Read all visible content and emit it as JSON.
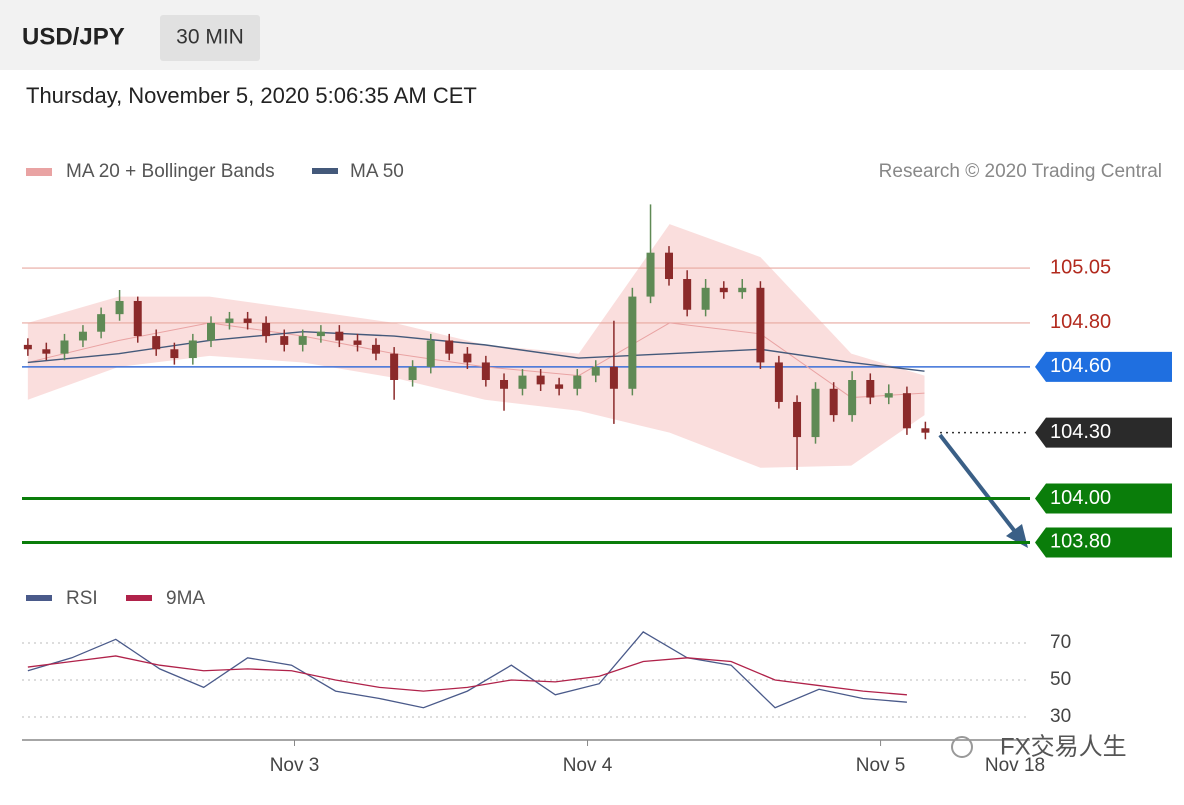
{
  "header": {
    "symbol": "USD/JPY",
    "interval": "30 MIN",
    "timestamp": "Thursday, November 5, 2020 5:06:35 AM CET"
  },
  "chart_data": [
    {
      "type": "candlestick",
      "credit": "Research © 2020 Trading Central",
      "watermark": "FX交易人生",
      "up_color": "#5f8a55",
      "down_color": "#8b2a2a",
      "xlim": [
        2.07,
        5.51
      ],
      "xticks": [
        {
          "value": 3,
          "label": "Nov 3"
        },
        {
          "value": 4,
          "label": "Nov 4"
        },
        {
          "value": 5,
          "label": "Nov 5"
        }
      ],
      "x_end_label": "Nov 18",
      "ylim": [
        103.72,
        105.36
      ],
      "x": [
        2.09,
        2.153,
        2.215,
        2.278,
        2.34,
        2.403,
        2.465,
        2.528,
        2.59,
        2.653,
        2.715,
        2.778,
        2.84,
        2.903,
        2.965,
        3.028,
        3.09,
        3.153,
        3.215,
        3.278,
        3.34,
        3.403,
        3.465,
        3.528,
        3.59,
        3.653,
        3.715,
        3.778,
        3.84,
        3.903,
        3.965,
        4.028,
        4.09,
        4.153,
        4.215,
        4.278,
        4.34,
        4.403,
        4.465,
        4.528,
        4.59,
        4.653,
        4.715,
        4.778,
        4.84,
        4.903,
        4.965,
        5.028,
        5.09,
        5.153
      ],
      "open": [
        104.7,
        104.68,
        104.66,
        104.72,
        104.76,
        104.84,
        104.9,
        104.74,
        104.68,
        104.64,
        104.72,
        104.8,
        104.82,
        104.8,
        104.74,
        104.7,
        104.74,
        104.76,
        104.72,
        104.7,
        104.66,
        104.54,
        104.6,
        104.72,
        104.66,
        104.62,
        104.54,
        104.5,
        104.56,
        104.52,
        104.5,
        104.56,
        104.6,
        104.5,
        104.92,
        105.12,
        105.0,
        104.86,
        104.96,
        104.94,
        104.96,
        104.62,
        104.44,
        104.28,
        104.5,
        104.38,
        104.54,
        104.46,
        104.48,
        104.32
      ],
      "high": [
        104.73,
        104.71,
        104.75,
        104.79,
        104.87,
        104.95,
        104.92,
        104.77,
        104.71,
        104.75,
        104.83,
        104.85,
        104.85,
        104.83,
        104.77,
        104.77,
        104.79,
        104.79,
        104.75,
        104.73,
        104.69,
        104.63,
        104.75,
        104.75,
        104.69,
        104.65,
        104.57,
        104.59,
        104.59,
        104.55,
        104.59,
        104.63,
        104.81,
        104.96,
        105.34,
        105.15,
        105.04,
        105.0,
        104.99,
        105.0,
        104.99,
        104.65,
        104.47,
        104.53,
        104.53,
        104.58,
        104.57,
        104.52,
        104.51,
        104.35
      ],
      "low": [
        104.65,
        104.63,
        104.63,
        104.69,
        104.73,
        104.81,
        104.71,
        104.65,
        104.61,
        104.61,
        104.69,
        104.77,
        104.77,
        104.71,
        104.67,
        104.67,
        104.71,
        104.69,
        104.67,
        104.63,
        104.45,
        104.51,
        104.57,
        104.63,
        104.59,
        104.51,
        104.4,
        104.47,
        104.49,
        104.47,
        104.47,
        104.53,
        104.34,
        104.47,
        104.89,
        104.97,
        104.83,
        104.83,
        104.91,
        104.91,
        104.59,
        104.41,
        104.13,
        104.25,
        104.35,
        104.35,
        104.43,
        104.43,
        104.29,
        104.27
      ],
      "close": [
        104.68,
        104.66,
        104.72,
        104.76,
        104.84,
        104.9,
        104.74,
        104.68,
        104.64,
        104.72,
        104.8,
        104.82,
        104.8,
        104.74,
        104.7,
        104.74,
        104.76,
        104.72,
        104.7,
        104.66,
        104.54,
        104.6,
        104.72,
        104.66,
        104.62,
        104.54,
        104.5,
        104.56,
        104.52,
        104.5,
        104.56,
        104.6,
        104.5,
        104.92,
        105.12,
        105.0,
        104.86,
        104.96,
        104.94,
        104.96,
        104.62,
        104.44,
        104.28,
        104.5,
        104.38,
        104.54,
        104.46,
        104.48,
        104.32,
        104.3
      ],
      "series": [
        {
          "name": "MA 20 + Bollinger Bands",
          "color": "#e9a3a3",
          "band_color": "#f9d6d4",
          "x": [
            2.09,
            2.4,
            2.71,
            3.03,
            3.34,
            3.65,
            3.97,
            4.28,
            4.59,
            4.9,
            5.15
          ],
          "values": [
            104.62,
            104.72,
            104.8,
            104.74,
            104.66,
            104.6,
            104.56,
            104.8,
            104.75,
            104.46,
            104.48
          ],
          "upper": [
            104.8,
            104.92,
            104.92,
            104.86,
            104.8,
            104.7,
            104.66,
            105.25,
            105.1,
            104.66,
            104.56
          ],
          "lower": [
            104.45,
            104.6,
            104.65,
            104.62,
            104.55,
            104.45,
            104.4,
            104.3,
            104.14,
            104.15,
            104.38
          ]
        },
        {
          "name": "MA 50",
          "color": "#44597a",
          "x": [
            2.09,
            2.4,
            2.71,
            3.03,
            3.34,
            3.65,
            3.97,
            4.28,
            4.59,
            4.9,
            5.15
          ],
          "values": [
            104.62,
            104.66,
            104.72,
            104.76,
            104.74,
            104.7,
            104.64,
            104.66,
            104.68,
            104.62,
            104.58
          ]
        }
      ],
      "levels": [
        {
          "value": 105.05,
          "label": "105.05",
          "line_color": "#e8a9a0",
          "text_color": "#b22a1e",
          "line_width": 1.2
        },
        {
          "value": 104.8,
          "label": "104.80",
          "line_color": "#e8a9a0",
          "text_color": "#b22a1e",
          "line_width": 1.2
        },
        {
          "value": 104.6,
          "label": "104.60",
          "line_color": "#3a6fd8",
          "text_color": "#ffffff",
          "box_color": "#1f6fe0",
          "line_width": 1.5
        },
        {
          "value": 104.3,
          "label": "104.30",
          "line_color": "#333333",
          "text_color": "#ffffff",
          "box_color": "#2a2a2a",
          "line_width": 1.2,
          "dotted": true
        },
        {
          "value": 104.0,
          "label": "104.00",
          "line_color": "#0a7d0a",
          "text_color": "#ffffff",
          "box_color": "#0a7d0a",
          "line_width": 3
        },
        {
          "value": 103.8,
          "label": "103.80",
          "line_color": "#0a7d0a",
          "text_color": "#ffffff",
          "box_color": "#0a7d0a",
          "line_width": 3
        }
      ]
    },
    {
      "type": "line",
      "ylim": [
        20,
        80
      ],
      "yticks": [
        70,
        50,
        30
      ],
      "x": [
        2.09,
        2.24,
        2.39,
        2.54,
        2.69,
        2.84,
        2.99,
        3.14,
        3.29,
        3.44,
        3.59,
        3.74,
        3.89,
        4.04,
        4.19,
        4.34,
        4.49,
        4.64,
        4.79,
        4.94,
        5.09
      ],
      "series": [
        {
          "name": "RSI",
          "color": "#4a5a8a",
          "values": [
            55,
            62,
            72,
            56,
            46,
            62,
            58,
            44,
            40,
            35,
            44,
            58,
            42,
            48,
            76,
            62,
            58,
            35,
            45,
            40,
            38
          ]
        },
        {
          "name": "9MA",
          "color": "#b0224a",
          "values": [
            57,
            60,
            63,
            58,
            55,
            56,
            55,
            50,
            46,
            44,
            46,
            50,
            49,
            52,
            60,
            62,
            60,
            50,
            47,
            44,
            42
          ]
        }
      ]
    }
  ]
}
